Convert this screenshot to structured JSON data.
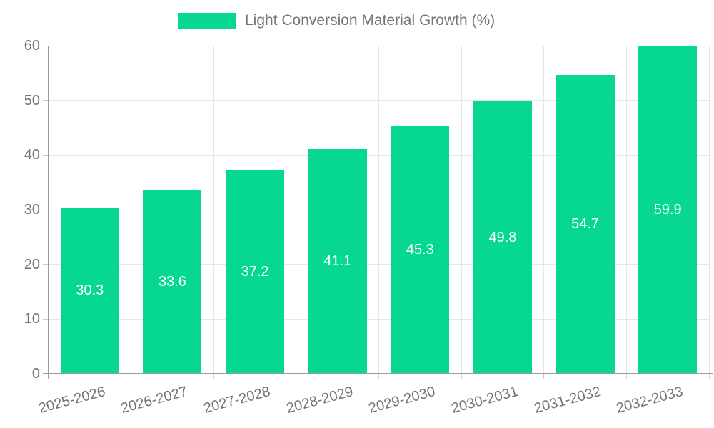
{
  "legend": {
    "label": "Light Conversion Material Growth (%)"
  },
  "chart_data": {
    "type": "bar",
    "title": "Light Conversion Material Growth (%)",
    "categories": [
      "2025-2026",
      "2026-2027",
      "2027-2028",
      "2028-2029",
      "2029-2030",
      "2030-2031",
      "2031-2032",
      "2032-2033"
    ],
    "series": [
      {
        "name": "Light Conversion Material Growth (%)",
        "values": [
          30.3,
          33.6,
          37.2,
          41.1,
          45.3,
          49.8,
          54.7,
          59.9
        ]
      }
    ],
    "value_labels": [
      "30.3",
      "33.6",
      "37.2",
      "41.1",
      "45.3",
      "49.8",
      "54.7",
      "59.9"
    ],
    "xlabel": "",
    "ylabel": "",
    "ylim": [
      0,
      60
    ],
    "yticks": [
      0,
      10,
      20,
      30,
      40,
      50,
      60
    ],
    "grid": true,
    "legend_position": "top",
    "value_label_position": "center-inside",
    "colors": {
      "bar": "#06d894",
      "bar_label": "#ffffff",
      "axis_text": "#757575",
      "grid_line": "#e6e6e6",
      "axis_line": "#9a9a9a",
      "background": "#ffffff"
    }
  }
}
